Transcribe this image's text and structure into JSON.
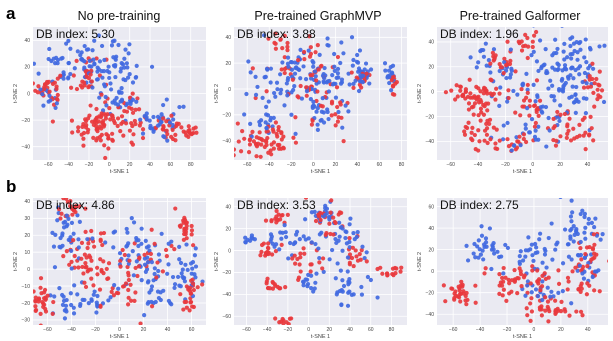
{
  "figure": {
    "row_labels": [
      "a",
      "b"
    ],
    "column_titles": [
      "No pre-training",
      "Pre-trained GraphMVP",
      "Pre-trained Galformer"
    ],
    "colors": {
      "red": "#e8383d",
      "blue": "#4169e1",
      "plot_bg": "#eaeaf2",
      "grid": "#ffffff"
    }
  },
  "chart_data": [
    {
      "type": "scatter",
      "row": "a",
      "title": "No pre-training",
      "annotation": "DB index: 5.30",
      "db_index": 5.3,
      "xlabel": "t-SNE 1",
      "ylabel": "t-SNE 2",
      "xticks": [
        -60,
        -40,
        -20,
        0,
        20,
        40,
        60,
        80
      ],
      "yticks": [
        40,
        20,
        0,
        -20,
        -40
      ],
      "xlim": [
        -75,
        95
      ],
      "ylim": [
        -50,
        50
      ],
      "grid": true,
      "series": [
        {
          "color": "red",
          "clusters": [
            {
              "cx": -60,
              "cy": 4,
              "sx": 6,
              "sy": 6,
              "n": 30
            },
            {
              "cx": -20,
              "cy": 12,
              "sx": 10,
              "sy": 10,
              "n": 35
            },
            {
              "cx": -10,
              "cy": -24,
              "sx": 13,
              "sy": 8,
              "n": 80
            },
            {
              "cx": 22,
              "cy": -18,
              "sx": 8,
              "sy": 8,
              "n": 25
            },
            {
              "cx": 62,
              "cy": -26,
              "sx": 8,
              "sy": 4,
              "n": 25
            },
            {
              "cx": 80,
              "cy": -30,
              "sx": 5,
              "sy": 3,
              "n": 15
            }
          ]
        },
        {
          "color": "blue",
          "clusters": [
            {
              "cx": -50,
              "cy": 14,
              "sx": 12,
              "sy": 12,
              "n": 45
            },
            {
              "cx": -10,
              "cy": 22,
              "sx": 12,
              "sy": 12,
              "n": 50
            },
            {
              "cx": 15,
              "cy": 12,
              "sx": 10,
              "sy": 14,
              "n": 40
            },
            {
              "cx": 50,
              "cy": -22,
              "sx": 10,
              "sy": 6,
              "n": 35
            },
            {
              "cx": 10,
              "cy": -10,
              "sx": 8,
              "sy": 6,
              "n": 15
            }
          ]
        }
      ]
    },
    {
      "type": "scatter",
      "row": "a",
      "title": "Pre-trained GraphMVP",
      "annotation": "DB index: 3.88",
      "db_index": 3.88,
      "xlabel": "t-SNE 1",
      "ylabel": "t-SNE 2",
      "xticks": [
        -60,
        -40,
        -20,
        0,
        20,
        40,
        60,
        80
      ],
      "yticks": [
        40,
        20,
        0,
        -20,
        -40
      ],
      "xlim": [
        -72,
        85
      ],
      "ylim": [
        -55,
        48
      ],
      "grid": true,
      "series": [
        {
          "color": "red",
          "clusters": [
            {
              "cx": -42,
              "cy": -40,
              "sx": 14,
              "sy": 6,
              "n": 60
            },
            {
              "cx": -12,
              "cy": 12,
              "sx": 18,
              "sy": 14,
              "n": 45
            },
            {
              "cx": 15,
              "cy": -12,
              "sx": 10,
              "sy": 8,
              "n": 25
            },
            {
              "cx": 45,
              "cy": 8,
              "sx": 5,
              "sy": 4,
              "n": 15
            },
            {
              "cx": 72,
              "cy": 5,
              "sx": 3,
              "sy": 5,
              "n": 12
            },
            {
              "cx": -30,
              "cy": 35,
              "sx": 6,
              "sy": 4,
              "n": 12
            }
          ]
        },
        {
          "color": "blue",
          "clusters": [
            {
              "cx": -20,
              "cy": 8,
              "sx": 22,
              "sy": 14,
              "n": 90
            },
            {
              "cx": 20,
              "cy": 12,
              "sx": 14,
              "sy": 14,
              "n": 40
            },
            {
              "cx": 45,
              "cy": 12,
              "sx": 4,
              "sy": 4,
              "n": 25
            },
            {
              "cx": 70,
              "cy": 12,
              "sx": 3,
              "sy": 5,
              "n": 15
            },
            {
              "cx": -45,
              "cy": -28,
              "sx": 5,
              "sy": 5,
              "n": 15
            },
            {
              "cx": 10,
              "cy": -22,
              "sx": 10,
              "sy": 8,
              "n": 20
            }
          ]
        }
      ]
    },
    {
      "type": "scatter",
      "row": "a",
      "title": "Pre-trained Galformer",
      "annotation": "DB index: 1.96",
      "db_index": 1.96,
      "xlabel": "t-SNE 1",
      "ylabel": "t-SNE 2",
      "xticks": [
        -60,
        -40,
        -20,
        0,
        20,
        40
      ],
      "yticks": [
        40,
        20,
        0,
        -20,
        -40
      ],
      "xlim": [
        -70,
        55
      ],
      "ylim": [
        -55,
        52
      ],
      "grid": true,
      "series": [
        {
          "color": "red",
          "clusters": [
            {
              "cx": -40,
              "cy": -2,
              "sx": 10,
              "sy": 6,
              "n": 60
            },
            {
              "cx": -22,
              "cy": 22,
              "sx": 5,
              "sy": 5,
              "n": 20
            },
            {
              "cx": -5,
              "cy": 40,
              "sx": 5,
              "sy": 4,
              "n": 15
            },
            {
              "cx": 0,
              "cy": -12,
              "sx": 6,
              "sy": 10,
              "n": 25
            },
            {
              "cx": -40,
              "cy": -30,
              "sx": 8,
              "sy": 8,
              "n": 30
            },
            {
              "cx": 30,
              "cy": -30,
              "sx": 10,
              "sy": 8,
              "n": 35
            },
            {
              "cx": 45,
              "cy": 5,
              "sx": 4,
              "sy": 10,
              "n": 20
            },
            {
              "cx": -15,
              "cy": -40,
              "sx": 8,
              "sy": 4,
              "n": 20
            }
          ]
        },
        {
          "color": "blue",
          "clusters": [
            {
              "cx": 25,
              "cy": 25,
              "sx": 12,
              "sy": 12,
              "n": 70
            },
            {
              "cx": 20,
              "cy": -5,
              "sx": 14,
              "sy": 12,
              "n": 60
            },
            {
              "cx": -15,
              "cy": 10,
              "sx": 10,
              "sy": 10,
              "n": 25
            },
            {
              "cx": -35,
              "cy": 30,
              "sx": 5,
              "sy": 5,
              "n": 12
            },
            {
              "cx": -8,
              "cy": -35,
              "sx": 10,
              "sy": 6,
              "n": 20
            }
          ]
        }
      ]
    },
    {
      "type": "scatter",
      "row": "b",
      "title": "",
      "annotation": "DB index: 4.86",
      "db_index": 4.86,
      "xlabel": "t-SNE 1",
      "ylabel": "t-SNE 2",
      "xticks": [
        -60,
        -40,
        -20,
        0,
        20,
        40,
        60
      ],
      "yticks": [
        40,
        30,
        20,
        10,
        0,
        -10,
        -20,
        -30
      ],
      "xlim": [
        -72,
        72
      ],
      "ylim": [
        -33,
        42
      ],
      "grid": true,
      "series": [
        {
          "color": "red",
          "clusters": [
            {
              "cx": -65,
              "cy": -18,
              "sx": 4,
              "sy": 6,
              "n": 30
            },
            {
              "cx": -40,
              "cy": 35,
              "sx": 5,
              "sy": 4,
              "n": 20
            },
            {
              "cx": -25,
              "cy": 5,
              "sx": 10,
              "sy": 10,
              "n": 50
            },
            {
              "cx": 0,
              "cy": -8,
              "sx": 12,
              "sy": 10,
              "n": 35
            },
            {
              "cx": 55,
              "cy": 25,
              "sx": 3,
              "sy": 5,
              "n": 25
            },
            {
              "cx": 60,
              "cy": -15,
              "sx": 4,
              "sy": 6,
              "n": 25
            },
            {
              "cx": 25,
              "cy": 10,
              "sx": 10,
              "sy": 8,
              "n": 20
            }
          ]
        },
        {
          "color": "blue",
          "clusters": [
            {
              "cx": -45,
              "cy": 20,
              "sx": 8,
              "sy": 10,
              "n": 35
            },
            {
              "cx": -45,
              "cy": -20,
              "sx": 8,
              "sy": 5,
              "n": 20
            },
            {
              "cx": 10,
              "cy": 12,
              "sx": 12,
              "sy": 10,
              "n": 40
            },
            {
              "cx": 30,
              "cy": -10,
              "sx": 10,
              "sy": 10,
              "n": 40
            },
            {
              "cx": 55,
              "cy": 0,
              "sx": 5,
              "sy": 8,
              "n": 30
            },
            {
              "cx": -20,
              "cy": -18,
              "sx": 10,
              "sy": 5,
              "n": 20
            }
          ]
        }
      ]
    },
    {
      "type": "scatter",
      "row": "b",
      "title": "",
      "annotation": "DB index: 3.53",
      "db_index": 3.53,
      "xlabel": "t-SNE 1",
      "ylabel": "t-SNE 2",
      "xticks": [
        -60,
        -40,
        -20,
        0,
        20,
        40,
        60,
        80
      ],
      "yticks": [
        40,
        20,
        0,
        -20,
        -40,
        -60
      ],
      "xlim": [
        -72,
        95
      ],
      "ylim": [
        -68,
        48
      ],
      "grid": true,
      "series": [
        {
          "color": "red",
          "clusters": [
            {
              "cx": -30,
              "cy": 30,
              "sx": 5,
              "sy": 3,
              "n": 15
            },
            {
              "cx": -40,
              "cy": 2,
              "sx": 5,
              "sy": 5,
              "n": 15
            },
            {
              "cx": -35,
              "cy": -32,
              "sx": 6,
              "sy": 3,
              "n": 15
            },
            {
              "cx": -5,
              "cy": -10,
              "sx": 10,
              "sy": 8,
              "n": 20
            },
            {
              "cx": 20,
              "cy": 25,
              "sx": 10,
              "sy": 10,
              "n": 30
            },
            {
              "cx": 80,
              "cy": -20,
              "sx": 5,
              "sy": 3,
              "n": 15
            },
            {
              "cx": -25,
              "cy": -65,
              "sx": 5,
              "sy": 2,
              "n": 12
            },
            {
              "cx": 45,
              "cy": -5,
              "sx": 5,
              "sy": 5,
              "n": 15
            }
          ]
        },
        {
          "color": "blue",
          "clusters": [
            {
              "cx": -55,
              "cy": 10,
              "sx": 3,
              "sy": 3,
              "n": 10
            },
            {
              "cx": -20,
              "cy": 10,
              "sx": 10,
              "sy": 6,
              "n": 25
            },
            {
              "cx": 15,
              "cy": 35,
              "sx": 6,
              "sy": 5,
              "n": 20
            },
            {
              "cx": 25,
              "cy": 5,
              "sx": 14,
              "sy": 12,
              "n": 40
            },
            {
              "cx": 40,
              "cy": -35,
              "sx": 10,
              "sy": 8,
              "n": 25
            },
            {
              "cx": 0,
              "cy": -30,
              "sx": 8,
              "sy": 6,
              "n": 15
            }
          ]
        }
      ]
    },
    {
      "type": "scatter",
      "row": "b",
      "title": "",
      "annotation": "DB index: 2.75",
      "db_index": 2.75,
      "xlabel": "t-SNE 1",
      "ylabel": "t-SNE 2",
      "xticks": [
        -60,
        -40,
        -20,
        0,
        20,
        40
      ],
      "yticks": [
        60,
        40,
        20,
        0,
        -20,
        -40
      ],
      "xlim": [
        -72,
        55
      ],
      "ylim": [
        -50,
        68
      ],
      "grid": true,
      "series": [
        {
          "color": "red",
          "clusters": [
            {
              "cx": -55,
              "cy": -20,
              "sx": 5,
              "sy": 6,
              "n": 30
            },
            {
              "cx": -10,
              "cy": -10,
              "sx": 12,
              "sy": 10,
              "n": 50
            },
            {
              "cx": 15,
              "cy": -35,
              "sx": 10,
              "sy": 6,
              "n": 35
            },
            {
              "cx": 40,
              "cy": 15,
              "sx": 5,
              "sy": 10,
              "n": 25
            },
            {
              "cx": 30,
              "cy": -10,
              "sx": 8,
              "sy": 8,
              "n": 20
            }
          ]
        },
        {
          "color": "blue",
          "clusters": [
            {
              "cx": -35,
              "cy": 20,
              "sx": 8,
              "sy": 8,
              "n": 30
            },
            {
              "cx": 0,
              "cy": 15,
              "sx": 12,
              "sy": 10,
              "n": 40
            },
            {
              "cx": 30,
              "cy": 40,
              "sx": 8,
              "sy": 12,
              "n": 40
            },
            {
              "cx": 40,
              "cy": 0,
              "sx": 5,
              "sy": 8,
              "n": 20
            },
            {
              "cx": 10,
              "cy": -20,
              "sx": 10,
              "sy": 5,
              "n": 20
            }
          ]
        }
      ]
    }
  ]
}
